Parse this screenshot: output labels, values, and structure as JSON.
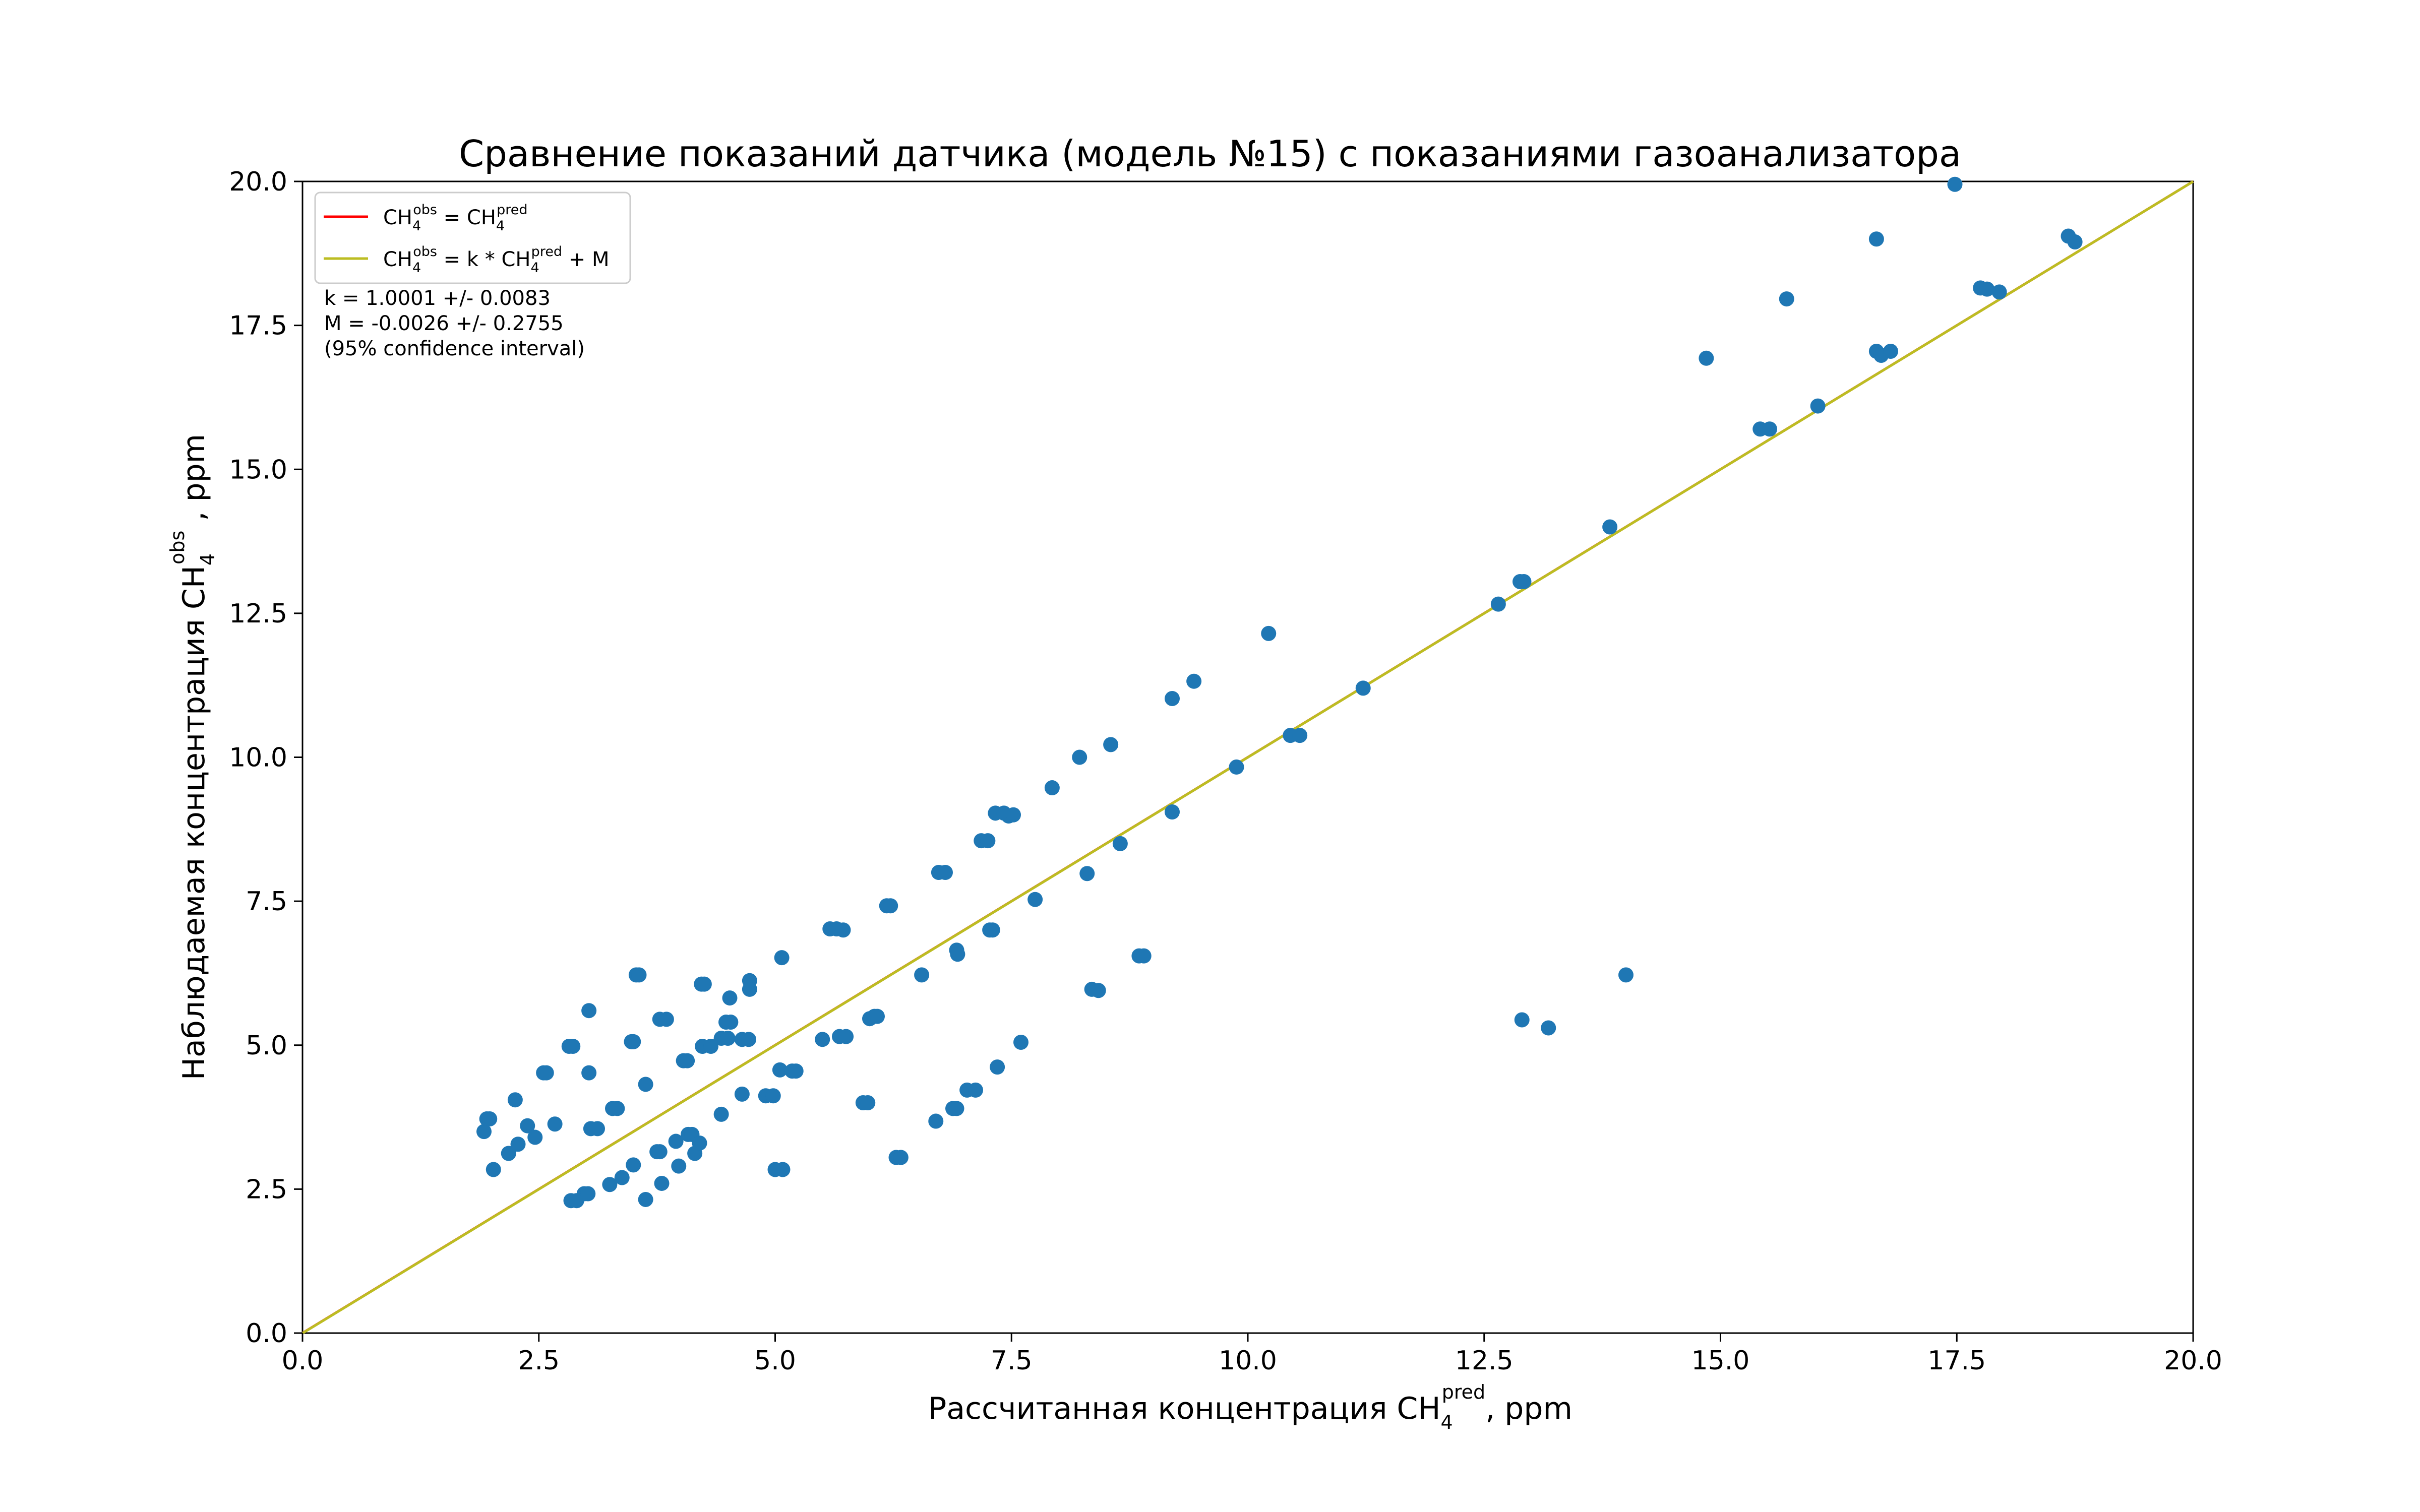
{
  "chart_data": {
    "type": "scatter",
    "title": "Сравнение показаний датчика (модель №15) с показаниями газоанализатора",
    "xlabel": {
      "main": "Рассчитанная концентрация CH",
      "sub": "4",
      "sup": "pred",
      "tail": ", ppm"
    },
    "ylabel": {
      "main": "Наблюдаемая концентрация CH",
      "sub": "4",
      "sup": "obs",
      "tail": " , ppm"
    },
    "xlim": [
      0,
      20
    ],
    "ylim": [
      0,
      20
    ],
    "x_ticks": [
      "0.0",
      "2.5",
      "5.0",
      "7.5",
      "10.0",
      "12.5",
      "15.0",
      "17.5",
      "20.0"
    ],
    "y_ticks": [
      "0.0",
      "2.5",
      "5.0",
      "7.5",
      "10.0",
      "12.5",
      "15.0",
      "17.5",
      "20.0"
    ],
    "grid": false,
    "legend_position": "top-left",
    "legend": [
      {
        "lhs": "CH",
        "lhs_sub": "4",
        "lhs_sup": "obs",
        "mid": " = CH",
        "rhs_sub": "4",
        "rhs_sup": "pred",
        "tail": "",
        "color": "#ff0000"
      },
      {
        "lhs": "CH",
        "lhs_sub": "4",
        "lhs_sup": "obs",
        "mid": " = k * CH",
        "rhs_sub": "4",
        "rhs_sup": "pred",
        "tail": " + M",
        "color": "#bcbd22"
      }
    ],
    "annotations": [
      "k = 1.0001 +/- 0.0083",
      "M = -0.0026 +/- 0.2755",
      "(95% confidence interval)"
    ],
    "fit_lines": [
      {
        "k": 1.0,
        "m": 0.0,
        "color": "#ff0000"
      },
      {
        "k": 1.0001,
        "m": -0.0026,
        "color": "#bcbd22"
      }
    ],
    "point_color": "#1f77b4",
    "points": [
      [
        1.92,
        3.5
      ],
      [
        1.95,
        3.72
      ],
      [
        1.98,
        3.72
      ],
      [
        2.02,
        2.84
      ],
      [
        2.18,
        3.12
      ],
      [
        2.25,
        4.05
      ],
      [
        2.28,
        3.28
      ],
      [
        2.38,
        3.6
      ],
      [
        2.46,
        3.4
      ],
      [
        2.55,
        4.52
      ],
      [
        2.58,
        4.52
      ],
      [
        2.67,
        3.63
      ],
      [
        2.82,
        4.98
      ],
      [
        2.86,
        4.98
      ],
      [
        2.84,
        2.3
      ],
      [
        2.9,
        2.3
      ],
      [
        2.98,
        2.42
      ],
      [
        3.02,
        2.42
      ],
      [
        3.03,
        5.6
      ],
      [
        3.03,
        4.52
      ],
      [
        3.05,
        3.55
      ],
      [
        3.12,
        3.55
      ],
      [
        3.25,
        2.58
      ],
      [
        3.28,
        3.9
      ],
      [
        3.33,
        3.9
      ],
      [
        3.38,
        2.7
      ],
      [
        3.48,
        5.06
      ],
      [
        3.5,
        5.06
      ],
      [
        3.5,
        2.92
      ],
      [
        3.53,
        6.22
      ],
      [
        3.56,
        6.22
      ],
      [
        3.63,
        4.32
      ],
      [
        3.63,
        2.32
      ],
      [
        3.75,
        3.15
      ],
      [
        3.78,
        3.15
      ],
      [
        3.78,
        5.45
      ],
      [
        3.85,
        5.45
      ],
      [
        3.8,
        2.6
      ],
      [
        3.95,
        3.33
      ],
      [
        3.98,
        2.9
      ],
      [
        4.03,
        4.73
      ],
      [
        4.07,
        4.73
      ],
      [
        4.08,
        3.45
      ],
      [
        4.12,
        3.45
      ],
      [
        4.15,
        3.12
      ],
      [
        4.2,
        3.3
      ],
      [
        4.22,
        6.06
      ],
      [
        4.25,
        6.06
      ],
      [
        4.23,
        4.98
      ],
      [
        4.32,
        4.98
      ],
      [
        4.43,
        5.12
      ],
      [
        4.5,
        5.12
      ],
      [
        4.43,
        3.8
      ],
      [
        4.48,
        5.4
      ],
      [
        4.53,
        5.4
      ],
      [
        4.52,
        5.82
      ],
      [
        4.65,
        5.1
      ],
      [
        4.72,
        5.1
      ],
      [
        4.65,
        4.15
      ],
      [
        4.73,
        6.12
      ],
      [
        4.73,
        5.97
      ],
      [
        4.9,
        4.12
      ],
      [
        4.98,
        4.12
      ],
      [
        5.0,
        2.84
      ],
      [
        5.08,
        2.84
      ],
      [
        5.05,
        4.57
      ],
      [
        5.07,
        6.52
      ],
      [
        5.18,
        4.55
      ],
      [
        5.22,
        4.55
      ],
      [
        5.5,
        5.1
      ],
      [
        5.58,
        7.02
      ],
      [
        5.65,
        7.02
      ],
      [
        5.72,
        7.0
      ],
      [
        5.68,
        5.15
      ],
      [
        5.75,
        5.15
      ],
      [
        5.93,
        4.0
      ],
      [
        5.98,
        4.0
      ],
      [
        6.0,
        5.46
      ],
      [
        6.05,
        5.5
      ],
      [
        6.08,
        5.5
      ],
      [
        6.18,
        7.42
      ],
      [
        6.22,
        7.42
      ],
      [
        6.28,
        3.05
      ],
      [
        6.33,
        3.05
      ],
      [
        6.55,
        6.22
      ],
      [
        6.7,
        3.68
      ],
      [
        6.73,
        8.0
      ],
      [
        6.8,
        8.0
      ],
      [
        6.88,
        3.9
      ],
      [
        6.92,
        3.9
      ],
      [
        6.92,
        6.65
      ],
      [
        6.93,
        6.58
      ],
      [
        7.03,
        4.22
      ],
      [
        7.12,
        4.22
      ],
      [
        7.18,
        8.55
      ],
      [
        7.25,
        8.55
      ],
      [
        7.27,
        7.0
      ],
      [
        7.3,
        7.0
      ],
      [
        7.33,
        9.03
      ],
      [
        7.35,
        4.62
      ],
      [
        7.42,
        9.03
      ],
      [
        7.47,
        8.98
      ],
      [
        7.52,
        9.0
      ],
      [
        7.6,
        5.05
      ],
      [
        7.75,
        7.53
      ],
      [
        7.93,
        9.47
      ],
      [
        8.22,
        10.0
      ],
      [
        8.3,
        7.98
      ],
      [
        8.35,
        5.97
      ],
      [
        8.42,
        5.95
      ],
      [
        8.55,
        10.22
      ],
      [
        8.65,
        8.5
      ],
      [
        8.85,
        6.55
      ],
      [
        8.9,
        6.55
      ],
      [
        9.2,
        9.05
      ],
      [
        9.2,
        11.02
      ],
      [
        9.43,
        11.32
      ],
      [
        9.88,
        9.83
      ],
      [
        10.22,
        12.15
      ],
      [
        10.45,
        10.38
      ],
      [
        10.55,
        10.38
      ],
      [
        11.22,
        11.2
      ],
      [
        12.65,
        12.66
      ],
      [
        12.88,
        13.05
      ],
      [
        12.92,
        13.05
      ],
      [
        12.9,
        5.44
      ],
      [
        13.18,
        5.3
      ],
      [
        13.83,
        14.0
      ],
      [
        14.0,
        6.22
      ],
      [
        14.85,
        16.93
      ],
      [
        15.42,
        15.7
      ],
      [
        15.52,
        15.7
      ],
      [
        15.7,
        17.96
      ],
      [
        16.03,
        16.1
      ],
      [
        16.65,
        19.0
      ],
      [
        16.65,
        17.05
      ],
      [
        16.7,
        16.98
      ],
      [
        16.8,
        17.05
      ],
      [
        17.48,
        19.95
      ],
      [
        17.75,
        18.15
      ],
      [
        17.82,
        18.13
      ],
      [
        17.95,
        18.08
      ],
      [
        18.68,
        19.05
      ],
      [
        18.75,
        18.95
      ]
    ]
  }
}
